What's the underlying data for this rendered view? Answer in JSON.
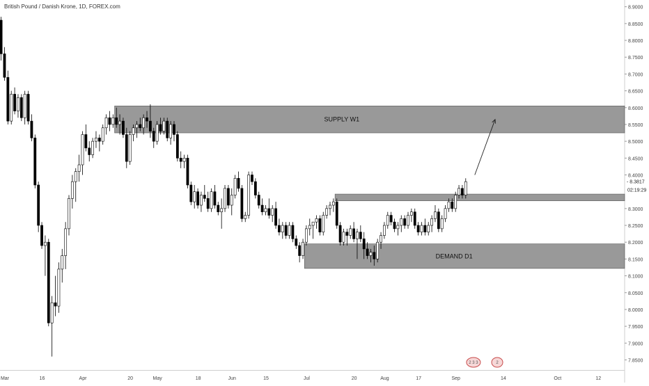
{
  "header": {
    "title": "British Pound / Danish Krone, 1D, FOREX.com"
  },
  "colors": {
    "up": "#ffffff",
    "down": "#000000",
    "zone": "#808080",
    "zone_border": "#555555",
    "grid": "#e6e6e6",
    "axis_text": "#444444"
  },
  "chart_data": {
    "type": "candlestick",
    "title": "British Pound / Danish Krone, 1D, FOREX.com",
    "ylim": [
      7.82,
      8.92
    ],
    "y_ticks": [
      "8.9000",
      "8.8500",
      "8.8000",
      "8.7500",
      "8.7000",
      "8.6500",
      "8.6000",
      "8.5500",
      "8.5000",
      "8.4500",
      "8.4000",
      "8.3000",
      "8.2500",
      "8.2000",
      "8.1500",
      "8.1000",
      "8.0500",
      "8.0000",
      "7.9500",
      "7.9000",
      "7.8500"
    ],
    "last_price": "8.3817",
    "countdown": "02:19:29",
    "x_ticks": [
      {
        "label": "Mar",
        "index": 0
      },
      {
        "label": "16",
        "index": 11
      },
      {
        "label": "Apr",
        "index": 23
      },
      {
        "label": "20",
        "index": 37
      },
      {
        "label": "May",
        "index": 45
      },
      {
        "label": "18",
        "index": 57
      },
      {
        "label": "Jun",
        "index": 67
      },
      {
        "label": "15",
        "index": 77
      },
      {
        "label": "Jul",
        "index": 89
      },
      {
        "label": "20",
        "index": 103
      },
      {
        "label": "Aug",
        "index": 112
      },
      {
        "label": "17",
        "index": 122
      },
      {
        "label": "Sep",
        "index": 133
      },
      {
        "label": "14",
        "index": 147
      },
      {
        "label": "Oct",
        "index": 163
      },
      {
        "label": "12",
        "index": 175
      }
    ],
    "candles": [
      [
        8.86,
        8.87,
        8.74,
        8.76
      ],
      [
        8.76,
        8.78,
        8.68,
        8.69
      ],
      [
        8.69,
        8.71,
        8.55,
        8.56
      ],
      [
        8.56,
        8.65,
        8.55,
        8.64
      ],
      [
        8.64,
        8.66,
        8.58,
        8.59
      ],
      [
        8.59,
        8.64,
        8.57,
        8.63
      ],
      [
        8.63,
        8.64,
        8.56,
        8.57
      ],
      [
        8.57,
        8.65,
        8.55,
        8.64
      ],
      [
        8.64,
        8.65,
        8.55,
        8.56
      ],
      [
        8.56,
        8.58,
        8.5,
        8.51
      ],
      [
        8.51,
        8.52,
        8.36,
        8.37
      ],
      [
        8.37,
        8.38,
        8.23,
        8.25
      ],
      [
        8.25,
        8.26,
        8.18,
        8.19
      ],
      [
        8.19,
        8.22,
        8.1,
        8.2
      ],
      [
        8.2,
        8.21,
        7.95,
        7.96
      ],
      [
        7.96,
        8.04,
        7.86,
        8.02
      ],
      [
        8.02,
        8.1,
        7.98,
        8.01
      ],
      [
        8.01,
        8.14,
        7.99,
        8.12
      ],
      [
        8.12,
        8.18,
        8.08,
        8.16
      ],
      [
        8.16,
        8.26,
        8.12,
        8.24
      ],
      [
        8.24,
        8.34,
        8.22,
        8.33
      ],
      [
        8.33,
        8.4,
        8.3,
        8.38
      ],
      [
        8.38,
        8.42,
        8.32,
        8.41
      ],
      [
        8.41,
        8.46,
        8.38,
        8.43
      ],
      [
        8.43,
        8.53,
        8.4,
        8.52
      ],
      [
        8.52,
        8.55,
        8.47,
        8.48
      ],
      [
        8.48,
        8.5,
        8.44,
        8.46
      ],
      [
        8.46,
        8.51,
        8.45,
        8.5
      ],
      [
        8.5,
        8.53,
        8.48,
        8.51
      ],
      [
        8.51,
        8.52,
        8.47,
        8.5
      ],
      [
        8.5,
        8.55,
        8.49,
        8.54
      ],
      [
        8.54,
        8.58,
        8.52,
        8.57
      ],
      [
        8.57,
        8.59,
        8.53,
        8.55
      ],
      [
        8.55,
        8.58,
        8.54,
        8.57
      ],
      [
        8.57,
        8.6,
        8.54,
        8.55
      ],
      [
        8.55,
        8.58,
        8.52,
        8.56
      ],
      [
        8.56,
        8.57,
        8.51,
        8.52
      ],
      [
        8.52,
        8.54,
        8.42,
        8.44
      ],
      [
        8.44,
        8.53,
        8.43,
        8.52
      ],
      [
        8.52,
        8.55,
        8.5,
        8.54
      ],
      [
        8.54,
        8.56,
        8.51,
        8.55
      ],
      [
        8.55,
        8.57,
        8.53,
        8.54
      ],
      [
        8.54,
        8.58,
        8.52,
        8.57
      ],
      [
        8.57,
        8.59,
        8.54,
        8.56
      ],
      [
        8.56,
        8.61,
        8.51,
        8.53
      ],
      [
        8.53,
        8.54,
        8.48,
        8.5
      ],
      [
        8.5,
        8.56,
        8.49,
        8.55
      ],
      [
        8.55,
        8.57,
        8.52,
        8.53
      ],
      [
        8.53,
        8.57,
        8.52,
        8.56
      ],
      [
        8.56,
        8.57,
        8.5,
        8.51
      ],
      [
        8.51,
        8.56,
        8.49,
        8.55
      ],
      [
        8.55,
        8.56,
        8.5,
        8.52
      ],
      [
        8.52,
        8.53,
        8.44,
        8.45
      ],
      [
        8.45,
        8.47,
        8.42,
        8.44
      ],
      [
        8.44,
        8.46,
        8.42,
        8.45
      ],
      [
        8.45,
        8.46,
        8.36,
        8.37
      ],
      [
        8.37,
        8.38,
        8.31,
        8.32
      ],
      [
        8.32,
        8.37,
        8.3,
        8.35
      ],
      [
        8.35,
        8.36,
        8.3,
        8.31
      ],
      [
        8.31,
        8.35,
        8.29,
        8.34
      ],
      [
        8.34,
        8.37,
        8.32,
        8.33
      ],
      [
        8.33,
        8.35,
        8.29,
        8.3
      ],
      [
        8.3,
        8.36,
        8.29,
        8.35
      ],
      [
        8.35,
        8.37,
        8.3,
        8.31
      ],
      [
        8.31,
        8.32,
        8.28,
        8.29
      ],
      [
        8.29,
        8.33,
        8.24,
        8.3
      ],
      [
        8.3,
        8.37,
        8.29,
        8.36
      ],
      [
        8.36,
        8.37,
        8.3,
        8.31
      ],
      [
        8.31,
        8.36,
        8.28,
        8.34
      ],
      [
        8.34,
        8.4,
        8.33,
        8.39
      ],
      [
        8.39,
        8.41,
        8.35,
        8.36
      ],
      [
        8.36,
        8.37,
        8.26,
        8.27
      ],
      [
        8.27,
        8.29,
        8.26,
        8.28
      ],
      [
        8.28,
        8.41,
        8.27,
        8.4
      ],
      [
        8.4,
        8.41,
        8.37,
        8.38
      ],
      [
        8.38,
        8.39,
        8.33,
        8.34
      ],
      [
        8.34,
        8.35,
        8.3,
        8.31
      ],
      [
        8.31,
        8.33,
        8.28,
        8.29
      ],
      [
        8.29,
        8.31,
        8.28,
        8.3
      ],
      [
        8.3,
        8.33,
        8.27,
        8.28
      ],
      [
        8.28,
        8.31,
        8.26,
        8.3
      ],
      [
        8.3,
        8.32,
        8.24,
        8.25
      ],
      [
        8.25,
        8.27,
        8.22,
        8.23
      ],
      [
        8.23,
        8.26,
        8.21,
        8.25
      ],
      [
        8.25,
        8.26,
        8.21,
        8.22
      ],
      [
        8.22,
        8.26,
        8.21,
        8.25
      ],
      [
        8.25,
        8.26,
        8.2,
        8.21
      ],
      [
        8.21,
        8.22,
        8.18,
        8.19
      ],
      [
        8.19,
        8.2,
        8.14,
        8.16
      ],
      [
        8.16,
        8.21,
        8.15,
        8.2
      ],
      [
        8.2,
        8.25,
        8.19,
        8.24
      ],
      [
        8.24,
        8.27,
        8.22,
        8.25
      ],
      [
        8.25,
        8.26,
        8.21,
        8.26
      ],
      [
        8.26,
        8.28,
        8.24,
        8.27
      ],
      [
        8.27,
        8.28,
        8.22,
        8.23
      ],
      [
        8.23,
        8.29,
        8.22,
        8.28
      ],
      [
        8.28,
        8.31,
        8.27,
        8.3
      ],
      [
        8.3,
        8.32,
        8.28,
        8.31
      ],
      [
        8.31,
        8.33,
        8.29,
        8.32
      ],
      [
        8.32,
        8.33,
        8.24,
        8.25
      ],
      [
        8.25,
        8.26,
        8.19,
        8.2
      ],
      [
        8.2,
        8.24,
        8.19,
        8.23
      ],
      [
        8.23,
        8.24,
        8.19,
        8.22
      ],
      [
        8.22,
        8.25,
        8.21,
        8.24
      ],
      [
        8.24,
        8.26,
        8.2,
        8.21
      ],
      [
        8.21,
        8.24,
        8.15,
        8.23
      ],
      [
        8.23,
        8.25,
        8.2,
        8.21
      ],
      [
        8.21,
        8.23,
        8.15,
        8.18
      ],
      [
        8.18,
        8.2,
        8.15,
        8.16
      ],
      [
        8.16,
        8.18,
        8.14,
        8.17
      ],
      [
        8.17,
        8.19,
        8.13,
        8.15
      ],
      [
        8.15,
        8.21,
        8.14,
        8.2
      ],
      [
        8.2,
        8.23,
        8.18,
        8.22
      ],
      [
        8.22,
        8.26,
        8.21,
        8.25
      ],
      [
        8.25,
        8.29,
        8.24,
        8.28
      ],
      [
        8.28,
        8.29,
        8.25,
        8.26
      ],
      [
        8.26,
        8.27,
        8.23,
        8.24
      ],
      [
        8.24,
        8.26,
        8.22,
        8.25
      ],
      [
        8.25,
        8.28,
        8.23,
        8.27
      ],
      [
        8.27,
        8.28,
        8.24,
        8.25
      ],
      [
        8.25,
        8.29,
        8.24,
        8.28
      ],
      [
        8.28,
        8.3,
        8.26,
        8.29
      ],
      [
        8.29,
        8.3,
        8.24,
        8.25
      ],
      [
        8.25,
        8.26,
        8.22,
        8.23
      ],
      [
        8.23,
        8.26,
        8.22,
        8.25
      ],
      [
        8.25,
        8.27,
        8.22,
        8.23
      ],
      [
        8.23,
        8.26,
        8.22,
        8.25
      ],
      [
        8.25,
        8.28,
        8.23,
        8.27
      ],
      [
        8.27,
        8.31,
        8.26,
        8.29
      ],
      [
        8.29,
        8.3,
        8.23,
        8.24
      ],
      [
        8.24,
        8.28,
        8.23,
        8.27
      ],
      [
        8.27,
        8.31,
        8.26,
        8.3
      ],
      [
        8.3,
        8.33,
        8.29,
        8.32
      ],
      [
        8.32,
        8.33,
        8.29,
        8.3
      ],
      [
        8.3,
        8.35,
        8.29,
        8.34
      ],
      [
        8.34,
        8.37,
        8.33,
        8.36
      ],
      [
        8.36,
        8.37,
        8.33,
        8.34
      ],
      [
        8.34,
        8.39,
        8.33,
        8.38
      ]
    ],
    "zones": [
      {
        "label": "SUPPLY  W1",
        "top": 8.605,
        "bottom": 8.525,
        "start_index": 34,
        "end": "right-edge"
      },
      {
        "label": "",
        "top": 8.343,
        "bottom": 8.323,
        "start_index": 99,
        "end": "right-edge"
      },
      {
        "label": "DEMAND  D1",
        "top": 8.195,
        "bottom": 8.122,
        "start_index": 90,
        "end": "right-edge"
      }
    ],
    "arrow": {
      "from_index": 140,
      "from_price": 8.4,
      "to_index": 146,
      "to_price": 8.565
    },
    "badges": [
      {
        "text": "2 3 3",
        "index": 139
      },
      {
        "text": "2",
        "index": 146
      }
    ]
  }
}
